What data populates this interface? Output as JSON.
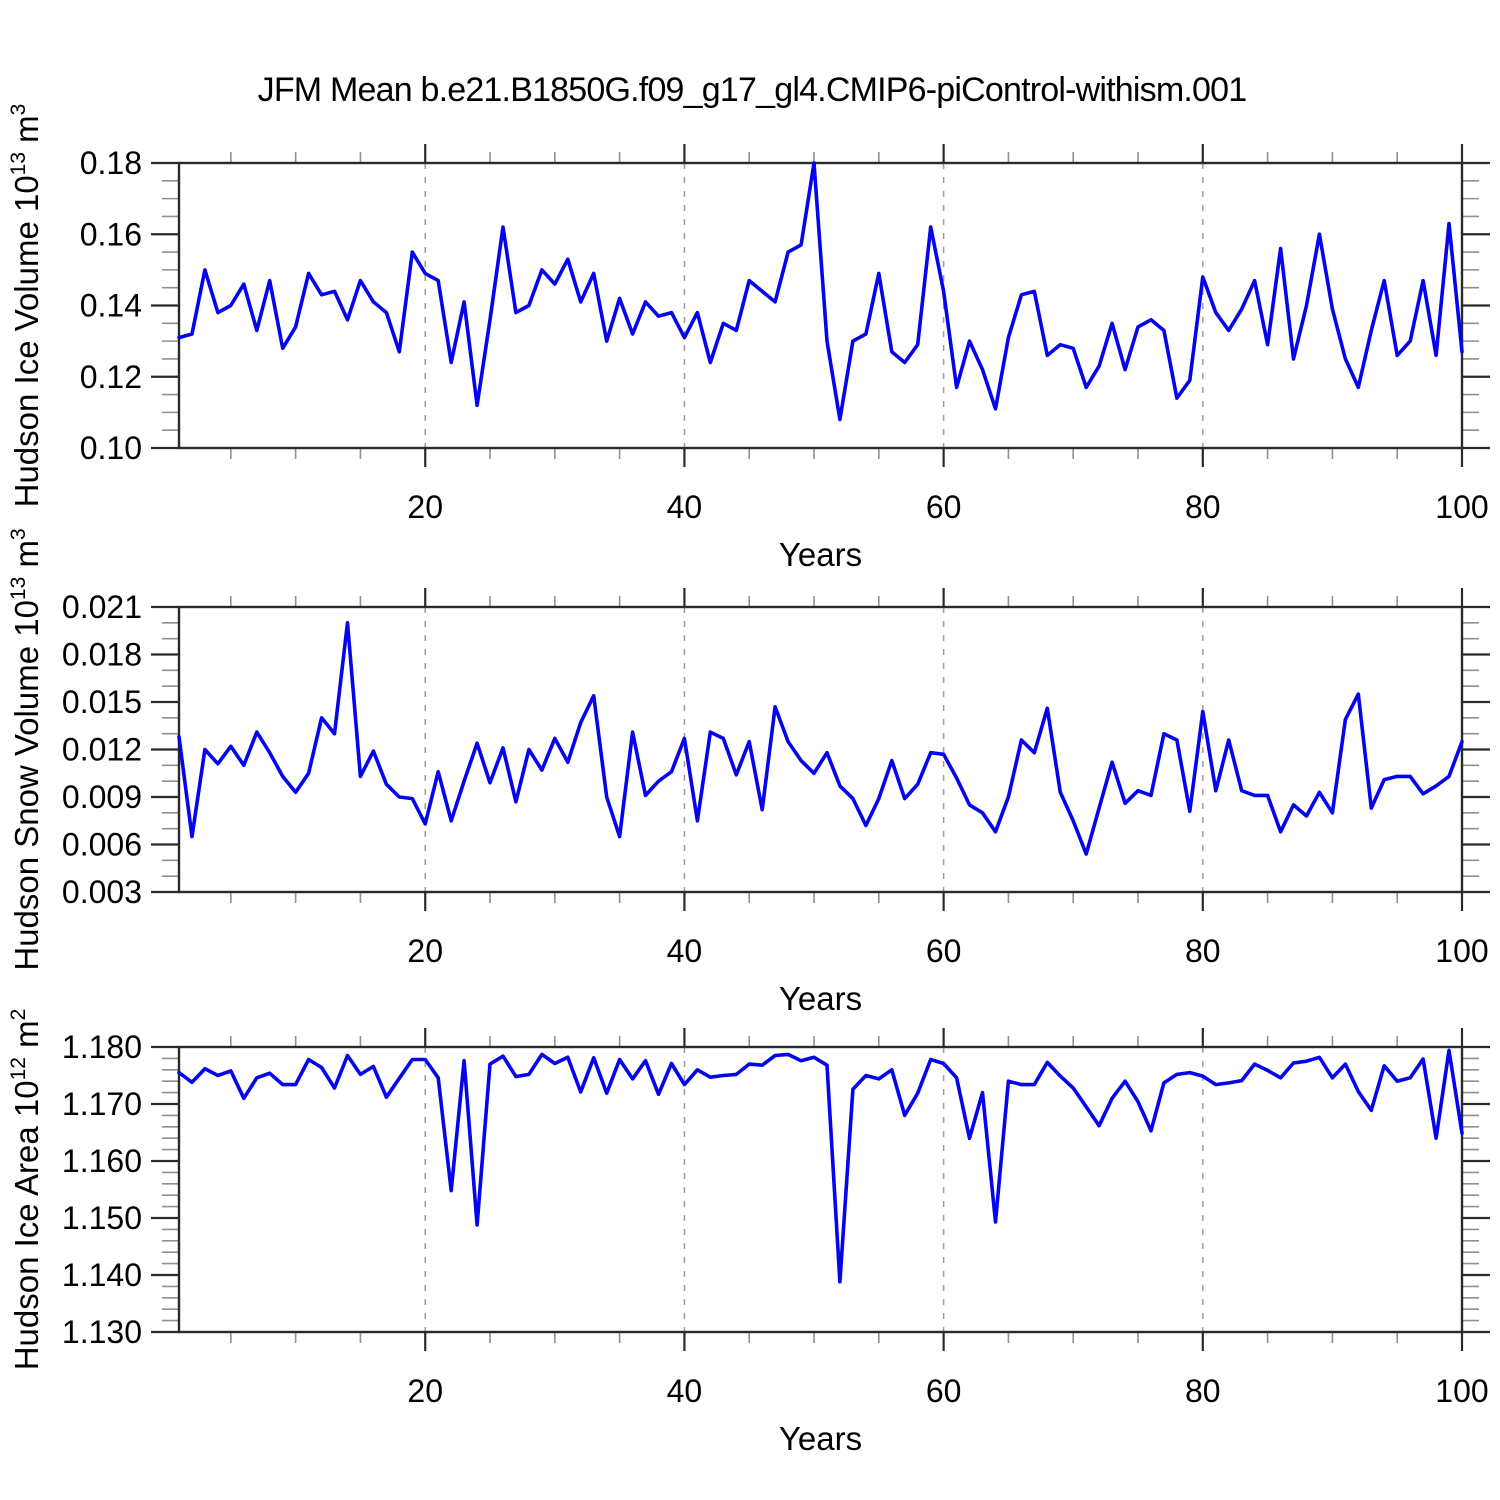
{
  "title": "JFM Mean b.e21.B1850G.f09_g17_gl4.CMIP6-piControl-withism.001",
  "x_axis": {
    "label": "Years",
    "range": [
      1,
      100
    ],
    "ticks": [
      20,
      40,
      60,
      80,
      100
    ],
    "tick_labels": [
      "20",
      "40",
      "60",
      "80",
      "100"
    ],
    "minor_step": 5,
    "gridlines": [
      20,
      40,
      60,
      80
    ]
  },
  "style": {
    "line_color": "#0404ee",
    "frame_color": "#2a2a2a",
    "minor_tick_color": "#909090",
    "grid_color": "#9d9d9d",
    "grid_dash": "6 8"
  },
  "chart_data": [
    {
      "type": "line",
      "name": "hudson-ice-volume",
      "ylabel": "Hudson Ice Volume 10^13 m^3",
      "ylabel_parts": {
        "text": "Hudson Ice Volume 10",
        "exp": "13",
        "unit": " m",
        "unit_exp": "3"
      },
      "xlabel": "Years",
      "ylim": [
        0.1,
        0.18
      ],
      "yticks": [
        0.1,
        0.12,
        0.14,
        0.16,
        0.18
      ],
      "ytick_labels": [
        "0.10",
        "0.12",
        "0.14",
        "0.16",
        "0.18"
      ],
      "yminor_step": 0.005,
      "x_start": 1,
      "x_step": 1,
      "grid": "dashed-vertical",
      "legend": "none",
      "values": [
        0.131,
        0.132,
        0.15,
        0.138,
        0.14,
        0.146,
        0.133,
        0.147,
        0.128,
        0.134,
        0.149,
        0.143,
        0.144,
        0.136,
        0.147,
        0.141,
        0.138,
        0.127,
        0.155,
        0.149,
        0.147,
        0.124,
        0.141,
        0.112,
        0.136,
        0.162,
        0.138,
        0.14,
        0.15,
        0.146,
        0.153,
        0.141,
        0.149,
        0.13,
        0.142,
        0.132,
        0.141,
        0.137,
        0.138,
        0.131,
        0.138,
        0.124,
        0.135,
        0.133,
        0.147,
        0.144,
        0.141,
        0.155,
        0.157,
        0.18,
        0.13,
        0.108,
        0.13,
        0.132,
        0.149,
        0.127,
        0.124,
        0.129,
        0.162,
        0.144,
        0.117,
        0.13,
        0.122,
        0.111,
        0.131,
        0.143,
        0.144,
        0.126,
        0.129,
        0.128,
        0.117,
        0.123,
        0.135,
        0.122,
        0.134,
        0.136,
        0.133,
        0.114,
        0.119,
        0.148,
        0.138,
        0.133,
        0.139,
        0.147,
        0.129,
        0.156,
        0.125,
        0.14,
        0.16,
        0.139,
        0.125,
        0.117,
        0.133,
        0.147,
        0.126,
        0.13,
        0.147,
        0.126,
        0.163,
        0.127
      ]
    },
    {
      "type": "line",
      "name": "hudson-snow-volume",
      "ylabel": "Hudson Snow Volume 10^13 m^3",
      "ylabel_parts": {
        "text": "Hudson Snow Volume 10",
        "exp": "13",
        "unit": " m",
        "unit_exp": "3"
      },
      "xlabel": "Years",
      "ylim": [
        0.003,
        0.021
      ],
      "yticks": [
        0.003,
        0.006,
        0.009,
        0.012,
        0.015,
        0.018,
        0.021
      ],
      "ytick_labels": [
        "0.003",
        "0.006",
        "0.009",
        "0.012",
        "0.015",
        "0.018",
        "0.021"
      ],
      "yminor_step": 0.001,
      "x_start": 1,
      "x_step": 1,
      "grid": "dashed-vertical",
      "legend": "none",
      "values": [
        0.0128,
        0.0065,
        0.012,
        0.0111,
        0.0122,
        0.011,
        0.0131,
        0.0118,
        0.0103,
        0.0093,
        0.0105,
        0.014,
        0.013,
        0.02,
        0.0103,
        0.0119,
        0.0098,
        0.009,
        0.0089,
        0.0073,
        0.0106,
        0.0075,
        0.01,
        0.0124,
        0.0099,
        0.0121,
        0.0087,
        0.012,
        0.0107,
        0.0127,
        0.0112,
        0.0137,
        0.0154,
        0.009,
        0.0065,
        0.0131,
        0.0091,
        0.01,
        0.0106,
        0.0127,
        0.0075,
        0.0131,
        0.0127,
        0.0104,
        0.0125,
        0.0082,
        0.0147,
        0.0125,
        0.0113,
        0.0105,
        0.0118,
        0.0097,
        0.0089,
        0.0072,
        0.0089,
        0.0113,
        0.0089,
        0.0098,
        0.0118,
        0.0117,
        0.0102,
        0.0085,
        0.008,
        0.0068,
        0.009,
        0.0126,
        0.0118,
        0.0146,
        0.0093,
        0.0075,
        0.0054,
        0.0083,
        0.0112,
        0.0086,
        0.0094,
        0.0091,
        0.013,
        0.0126,
        0.0081,
        0.0144,
        0.0094,
        0.0126,
        0.0094,
        0.0091,
        0.0091,
        0.0068,
        0.0085,
        0.0078,
        0.0093,
        0.008,
        0.0139,
        0.0155,
        0.0083,
        0.0101,
        0.0103,
        0.0103,
        0.0092,
        0.0097,
        0.0103,
        0.0125
      ]
    },
    {
      "type": "line",
      "name": "hudson-ice-area",
      "ylabel": "Hudson Ice Area 10^12 m^2",
      "ylabel_parts": {
        "text": "Hudson Ice Area 10",
        "exp": "12",
        "unit": " m",
        "unit_exp": "2"
      },
      "xlabel": "Years",
      "ylim": [
        1.13,
        1.18
      ],
      "yticks": [
        1.13,
        1.14,
        1.15,
        1.16,
        1.17,
        1.18
      ],
      "ytick_labels": [
        "1.130",
        "1.140",
        "1.150",
        "1.160",
        "1.170",
        "1.180"
      ],
      "yminor_step": 0.002,
      "x_start": 1,
      "x_step": 1,
      "grid": "dashed-vertical",
      "legend": "none",
      "values": [
        1.1755,
        1.1738,
        1.1762,
        1.175,
        1.1758,
        1.171,
        1.1746,
        1.1754,
        1.1734,
        1.1734,
        1.1778,
        1.1764,
        1.1728,
        1.1785,
        1.1752,
        1.1766,
        1.1712,
        1.1745,
        1.1778,
        1.1778,
        1.1746,
        1.1548,
        1.1776,
        1.1488,
        1.177,
        1.1784,
        1.1748,
        1.1752,
        1.1787,
        1.1771,
        1.1782,
        1.1721,
        1.1781,
        1.1719,
        1.1778,
        1.1744,
        1.1776,
        1.1717,
        1.1771,
        1.1734,
        1.176,
        1.1747,
        1.175,
        1.1752,
        1.177,
        1.1768,
        1.1785,
        1.1787,
        1.1776,
        1.1782,
        1.1768,
        1.1388,
        1.1726,
        1.175,
        1.1744,
        1.176,
        1.168,
        1.1719,
        1.1778,
        1.1771,
        1.1746,
        1.164,
        1.172,
        1.1493,
        1.174,
        1.1734,
        1.1734,
        1.1773,
        1.1749,
        1.1728,
        1.1695,
        1.1662,
        1.171,
        1.174,
        1.1704,
        1.1653,
        1.1737,
        1.1752,
        1.1755,
        1.1749,
        1.1734,
        1.1737,
        1.1741,
        1.177,
        1.1759,
        1.1746,
        1.1772,
        1.1775,
        1.1782,
        1.1746,
        1.177,
        1.1722,
        1.1689,
        1.1767,
        1.174,
        1.1746,
        1.1779,
        1.164,
        1.1794,
        1.1649
      ]
    }
  ]
}
